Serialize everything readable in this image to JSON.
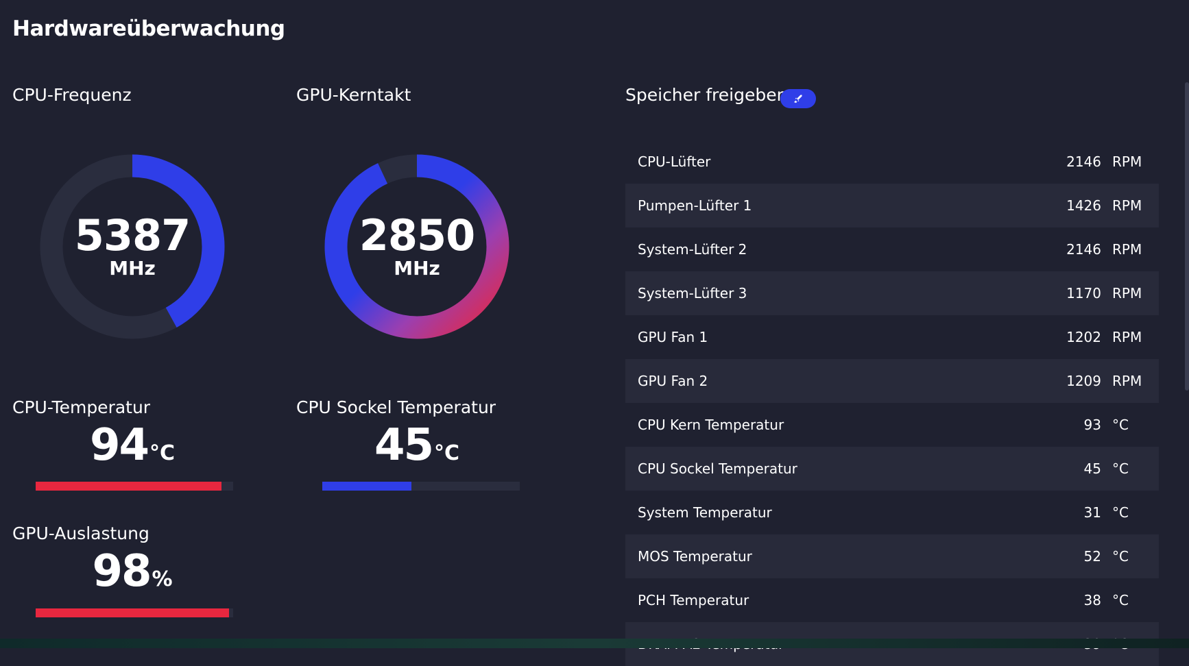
{
  "page": {
    "title": "Hardwareüberwachung"
  },
  "cpu_frequency": {
    "label": "CPU-Frequenz",
    "value": "5387",
    "unit": "MHz",
    "fill_fraction": 0.42
  },
  "gpu_clock": {
    "label": "GPU-Kerntakt",
    "value": "2850",
    "unit": "MHz",
    "fill_fraction": 0.93
  },
  "cpu_temperature": {
    "label": "CPU-Temperatur",
    "value": "94",
    "unit": "°C",
    "fill_fraction": 0.94,
    "color": "#e8273f"
  },
  "cpu_socket_temperature": {
    "label": "CPU Sockel Temperatur",
    "value": "45",
    "unit": "°C",
    "fill_fraction": 0.45,
    "color": "#2f3ee8"
  },
  "gpu_load": {
    "label": "GPU-Auslastung",
    "value": "98",
    "unit": "%",
    "fill_fraction": 0.98,
    "color": "#e8273f"
  },
  "memory": {
    "label": "Speicher freigeben",
    "button_icon": "rocket-icon"
  },
  "sensors": [
    {
      "name": "CPU-Lüfter",
      "value": "2146",
      "unit": "RPM"
    },
    {
      "name": "Pumpen-Lüfter 1",
      "value": "1426",
      "unit": "RPM"
    },
    {
      "name": "System-Lüfter 2",
      "value": "2146",
      "unit": "RPM"
    },
    {
      "name": "System-Lüfter 3",
      "value": "1170",
      "unit": "RPM"
    },
    {
      "name": "GPU Fan 1",
      "value": "1202",
      "unit": "RPM"
    },
    {
      "name": "GPU Fan 2",
      "value": "1209",
      "unit": "RPM"
    },
    {
      "name": "CPU Kern Temperatur",
      "value": "93",
      "unit": "°C"
    },
    {
      "name": "CPU Sockel Temperatur",
      "value": "45",
      "unit": "°C"
    },
    {
      "name": "System Temperatur",
      "value": "31",
      "unit": "°C"
    },
    {
      "name": "MOS Temperatur",
      "value": "52",
      "unit": "°C"
    },
    {
      "name": "PCH Temperatur",
      "value": "38",
      "unit": "°C"
    },
    {
      "name": "DRAM A2 Temperatur",
      "value": "39",
      "unit": "°C"
    }
  ],
  "colors": {
    "accent_blue": "#2f3ee8",
    "accent_red": "#e8273f",
    "accent_purple": "#9b3fb0",
    "track": "#2a2d3e",
    "background": "#1f2130"
  }
}
